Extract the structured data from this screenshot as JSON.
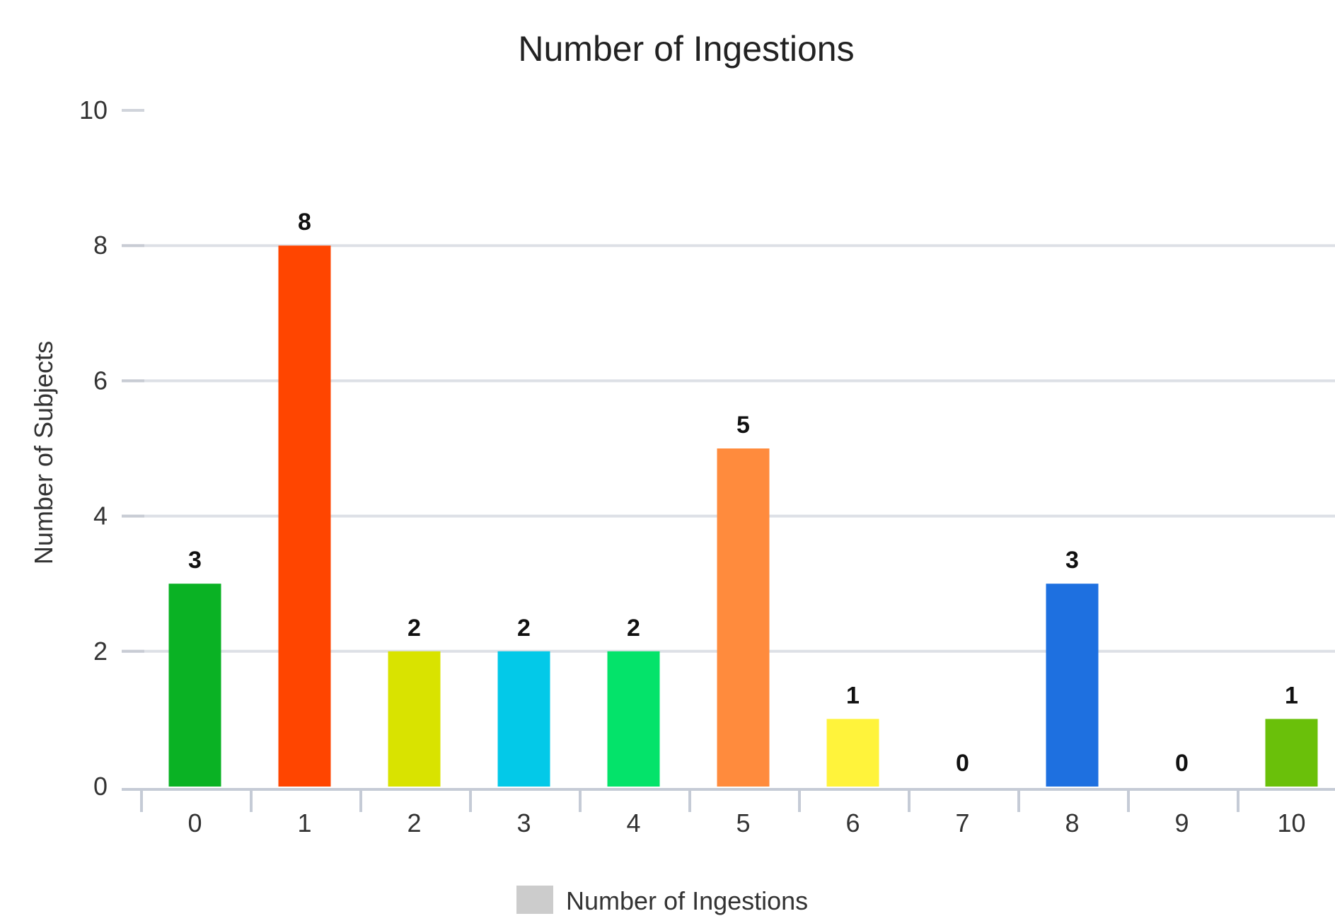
{
  "chart_data": {
    "type": "bar",
    "title": "Number of Ingestions",
    "xlabel": "",
    "ylabel": "Number of Subjects",
    "categories": [
      "0",
      "1",
      "2",
      "3",
      "4",
      "5",
      "6",
      "7",
      "8",
      "9",
      "10"
    ],
    "values": [
      3,
      8,
      2,
      2,
      2,
      5,
      1,
      0,
      3,
      0,
      1
    ],
    "colors": [
      "#0ab224",
      "#ff4500",
      "#d9e300",
      "#03c9e8",
      "#04e36a",
      "#ff8b3d",
      "#fff33b",
      "#888888",
      "#1e70e0",
      "#888888",
      "#6ac00a"
    ],
    "ylim": [
      0,
      10
    ],
    "yticks": [
      "0",
      "2",
      "4",
      "6",
      "8",
      "10"
    ],
    "grid": true,
    "legend": {
      "placement": "bottom-center",
      "entries": [
        {
          "name": "Number of Ingestions",
          "color": "#cccccc"
        }
      ]
    }
  }
}
